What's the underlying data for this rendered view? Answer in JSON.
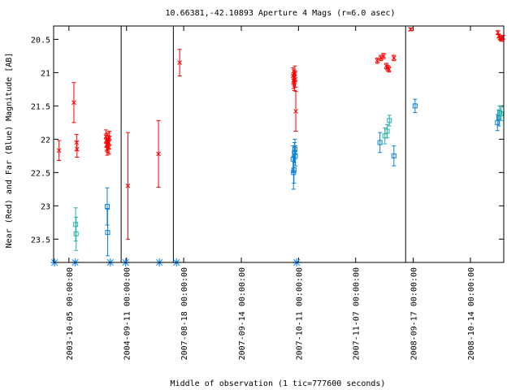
{
  "chart_data": {
    "type": "scatter",
    "title": "10.66381,-42.10893   Aperture 4 Mags (r=6.0 asec)",
    "xlabel": "Middle of observation (1 tic=777600 seconds)",
    "ylabel": "Near (Red) and Far (Blue) Magnitude [AB]",
    "xlim": [
      0,
      100
    ],
    "ylim": [
      23.85,
      20.3
    ],
    "y_inverted": true,
    "grid": false,
    "y_ticks": [
      {
        "value": 20.5,
        "label": "20.5"
      },
      {
        "value": 21,
        "label": "21"
      },
      {
        "value": 21.5,
        "label": "21.5"
      },
      {
        "value": 22,
        "label": "22"
      },
      {
        "value": 22.5,
        "label": "22.5"
      },
      {
        "value": 23,
        "label": "23"
      },
      {
        "value": 23.5,
        "label": "23.5"
      }
    ],
    "x_ticks": [
      {
        "value": 3.4,
        "label": "2003-10-05 00:00:00"
      },
      {
        "value": 16.2,
        "label": "2004-09-11 00:00:00"
      },
      {
        "value": 28.9,
        "label": "2007-08-18 00:00:00"
      },
      {
        "value": 41.7,
        "label": "2007-09-14 00:00:00"
      },
      {
        "value": 54.4,
        "label": "2007-10-11 00:00:00"
      },
      {
        "value": 67.1,
        "label": "2007-11-07 00:00:00"
      },
      {
        "value": 79.9,
        "label": "2008-09-17 00:00:00"
      },
      {
        "value": 92.6,
        "label": "2008-10-14 00:00:00"
      }
    ],
    "separators": [
      15.0,
      26.6,
      78.2
    ],
    "series": [
      {
        "color": "#ff0000",
        "marker": "x",
        "points": [
          {
            "x": 1.2,
            "y": 22.17,
            "err": 0.15
          },
          {
            "x": 4.5,
            "y": 21.45,
            "err": 0.3
          },
          {
            "x": 5.1,
            "y": 22.05,
            "err": 0.12
          },
          {
            "x": 5.2,
            "y": 22.15,
            "err": 0.12
          },
          {
            "x": 11.6,
            "y": 21.96,
            "err": 0.1
          },
          {
            "x": 11.7,
            "y": 22.02,
            "err": 0.1
          },
          {
            "x": 11.8,
            "y": 22.08,
            "err": 0.1
          },
          {
            "x": 11.9,
            "y": 22.14,
            "err": 0.1
          },
          {
            "x": 12.0,
            "y": 22.1,
            "err": 0.1
          },
          {
            "x": 12.1,
            "y": 22.0,
            "err": 0.1
          },
          {
            "x": 12.2,
            "y": 22.05,
            "err": 0.1
          },
          {
            "x": 12.3,
            "y": 22.12,
            "err": 0.1
          },
          {
            "x": 12.4,
            "y": 21.98,
            "err": 0.1
          },
          {
            "x": 16.5,
            "y": 22.7,
            "err": 0.8
          },
          {
            "x": 23.3,
            "y": 22.22,
            "err": 0.5
          },
          {
            "x": 28.0,
            "y": 20.85,
            "err": 0.2
          },
          {
            "x": 53.2,
            "y": 21.05,
            "err": 0.12
          },
          {
            "x": 53.3,
            "y": 21.12,
            "err": 0.12
          },
          {
            "x": 53.4,
            "y": 21.08,
            "err": 0.12
          },
          {
            "x": 53.5,
            "y": 21.15,
            "err": 0.12
          },
          {
            "x": 53.6,
            "y": 21.02,
            "err": 0.12
          },
          {
            "x": 53.7,
            "y": 21.1,
            "err": 0.12
          },
          {
            "x": 53.8,
            "y": 21.58,
            "err": 0.3
          },
          {
            "x": 71.9,
            "y": 20.82,
            "err": 0.04
          },
          {
            "x": 72.7,
            "y": 20.78,
            "err": 0.04
          },
          {
            "x": 73.3,
            "y": 20.75,
            "err": 0.04
          },
          {
            "x": 73.9,
            "y": 20.9,
            "err": 0.04
          },
          {
            "x": 74.2,
            "y": 20.93,
            "err": 0.04
          },
          {
            "x": 74.5,
            "y": 20.95,
            "err": 0.04
          },
          {
            "x": 75.6,
            "y": 20.78,
            "err": 0.04
          },
          {
            "x": 79.3,
            "y": 20.35,
            "err": 0.02
          },
          {
            "x": 98.7,
            "y": 20.4,
            "err": 0.03
          },
          {
            "x": 98.9,
            "y": 20.45,
            "err": 0.03
          },
          {
            "x": 99.2,
            "y": 20.48,
            "err": 0.03
          },
          {
            "x": 99.5,
            "y": 20.5,
            "err": 0.03
          },
          {
            "x": 99.8,
            "y": 20.47,
            "err": 0.03
          }
        ]
      },
      {
        "color": "#0a7fd8",
        "marker": "square",
        "points": [
          {
            "x": 11.9,
            "y": 23.01,
            "err": 0.28
          },
          {
            "x": 12.0,
            "y": 23.4,
            "err": 0.35
          },
          {
            "x": 53.2,
            "y": 22.3,
            "err": 0.2
          },
          {
            "x": 53.3,
            "y": 22.5,
            "err": 0.25
          },
          {
            "x": 53.4,
            "y": 22.46,
            "err": 0.2
          },
          {
            "x": 53.5,
            "y": 22.2,
            "err": 0.15
          },
          {
            "x": 53.6,
            "y": 22.15,
            "err": 0.15
          },
          {
            "x": 53.7,
            "y": 22.25,
            "err": 0.15
          },
          {
            "x": 72.5,
            "y": 22.05,
            "err": 0.15
          },
          {
            "x": 75.6,
            "y": 22.25,
            "err": 0.15
          },
          {
            "x": 80.3,
            "y": 21.5,
            "err": 0.1
          },
          {
            "x": 98.6,
            "y": 21.75,
            "err": 0.12
          },
          {
            "x": 98.9,
            "y": 21.68,
            "err": 0.12
          }
        ]
      },
      {
        "color": "#20b2aa",
        "marker": "square",
        "points": [
          {
            "x": 4.9,
            "y": 23.28,
            "err": 0.25
          },
          {
            "x": 5.0,
            "y": 23.42,
            "err": 0.25
          },
          {
            "x": 73.6,
            "y": 21.95,
            "err": 0.12
          },
          {
            "x": 74.1,
            "y": 21.88,
            "err": 0.1
          },
          {
            "x": 74.6,
            "y": 21.72,
            "err": 0.08
          },
          {
            "x": 99.1,
            "y": 21.6,
            "err": 0.1
          },
          {
            "x": 99.4,
            "y": 21.62,
            "err": 0.1
          }
        ]
      }
    ],
    "baseline_markers": {
      "color": "#1e90ff",
      "y": 23.85,
      "x": [
        0.2,
        4.8,
        12.6,
        16.0,
        23.5,
        27.3,
        54.0
      ]
    }
  }
}
